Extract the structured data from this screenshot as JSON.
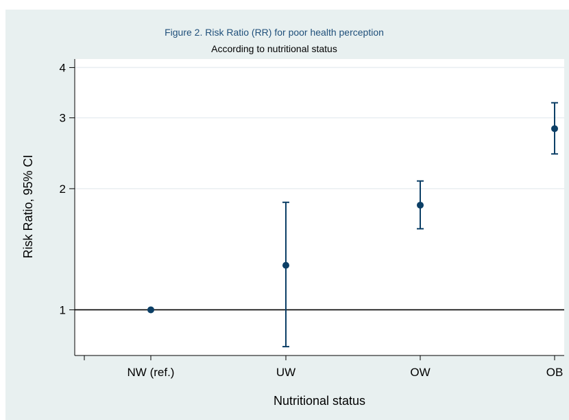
{
  "chart_data": {
    "type": "scatter",
    "title": "Figure 2. Risk Ratio (RR) for poor health perception",
    "subtitle": "According to nutritional status",
    "xlabel": "Nutritional status",
    "ylabel": "Risk Ratio, 95% CI",
    "y_scale": "log",
    "ylim": [
      0.77,
      4.2
    ],
    "y_ticks": [
      1,
      2,
      3,
      4
    ],
    "reference_line": 1,
    "grid": true,
    "categories": [
      "NW (ref.)",
      "UW",
      "OW",
      "OB"
    ],
    "series": [
      {
        "rr": [
          1.0,
          1.29,
          1.82,
          2.82
        ],
        "ci_lower": [
          null,
          0.81,
          1.59,
          2.44
        ],
        "ci_upper": [
          null,
          1.85,
          2.09,
          3.27
        ]
      }
    ]
  },
  "colors": {
    "background": "#e8f0f0",
    "plot_background": "#ffffff",
    "marker": "#0c3f66",
    "title": "#1f4f7a",
    "gridline": "#e9eef1",
    "axis": "#000000"
  }
}
